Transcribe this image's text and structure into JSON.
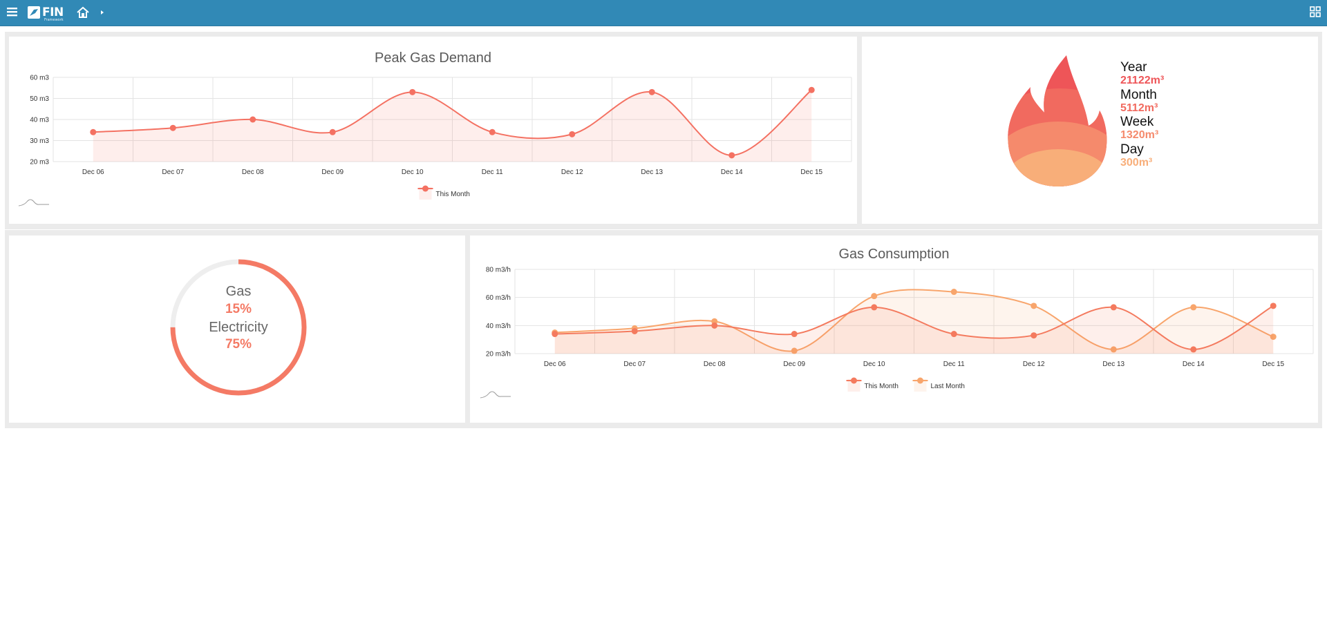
{
  "topbar": {
    "logo_text": "FIN",
    "logo_subtext": "Framework",
    "icons": [
      "menu-icon",
      "home-icon",
      "caret-right-icon",
      "grid-icon"
    ]
  },
  "peak_demand": {
    "title": "Peak Gas Demand",
    "legend": "This Month"
  },
  "consumption_panel": {
    "title": "Gas Consumption"
  },
  "totals": {
    "items": [
      {
        "label": "Year",
        "value": "21122m³",
        "color": "#ee5558"
      },
      {
        "label": "Month",
        "value": "5112m³",
        "color": "#f16a5f"
      },
      {
        "label": "Week",
        "value": "1320m³",
        "color": "#f58a6c"
      },
      {
        "label": "Day",
        "value": "300m³",
        "color": "#f8ae79"
      }
    ]
  },
  "share": {
    "gas_label": "Gas",
    "gas_value": "15%",
    "electricity_label": "Electricity",
    "electricity_value": "75%",
    "ring_fraction": 0.75
  },
  "chart_data": [
    {
      "type": "area",
      "title": "Peak Gas Demand",
      "categories": [
        "Dec 06",
        "Dec 07",
        "Dec 08",
        "Dec 09",
        "Dec 10",
        "Dec 11",
        "Dec 12",
        "Dec 13",
        "Dec 14",
        "Dec 15"
      ],
      "series": [
        {
          "name": "This Month",
          "values": [
            34,
            36,
            40,
            34,
            53,
            34,
            33,
            53,
            23,
            54
          ],
          "color": "#f47162"
        }
      ],
      "ylim": [
        20,
        60
      ],
      "yticks": [
        "20 m3",
        "30 m3",
        "40 m3",
        "50 m3",
        "60 m3"
      ],
      "grid": true,
      "legend": "bottom-center"
    },
    {
      "type": "area",
      "title": "Gas Consumption",
      "categories": [
        "Dec 06",
        "Dec 07",
        "Dec 08",
        "Dec 09",
        "Dec 10",
        "Dec 11",
        "Dec 12",
        "Dec 13",
        "Dec 14",
        "Dec 15"
      ],
      "series": [
        {
          "name": "This Month",
          "values": [
            34,
            36,
            40,
            34,
            53,
            34,
            33,
            53,
            23,
            54
          ],
          "color": "#f47a5e"
        },
        {
          "name": "Last Month",
          "values": [
            35,
            38,
            43,
            22,
            61,
            64,
            54,
            23,
            53,
            32
          ],
          "color": "#f8a56c"
        }
      ],
      "ylim": [
        20,
        80
      ],
      "yticks": [
        "20 m3/h",
        "40 m3/h",
        "60 m3/h",
        "80 m3/h"
      ],
      "grid": true,
      "legend": "bottom-center"
    }
  ]
}
